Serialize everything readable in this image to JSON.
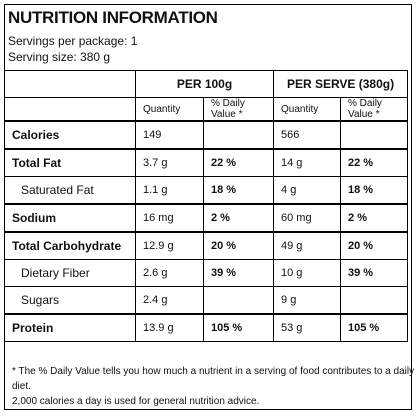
{
  "header": {
    "title": "NUTRITION INFORMATION",
    "servings_per_package": "Servings per package: 1",
    "serving_size": "Serving size: 380 g"
  },
  "table": {
    "column_groups": [
      "PER 100g",
      "PER SERVE (380g)"
    ],
    "subheaders": [
      "Quantity",
      "% Daily Value *",
      "Quantity",
      "% Daily Value *"
    ],
    "rows": [
      {
        "name": "Calories",
        "cells": [
          "149",
          null,
          "566",
          null
        ]
      },
      {
        "name": "Total Fat",
        "cells": [
          "3.7 g",
          "22 %",
          "14 g",
          "22 %"
        ],
        "sub": [
          {
            "name": "Saturated Fat",
            "cells": [
              "1.1 g",
              "18 %",
              "4 g",
              "18 %"
            ]
          }
        ]
      },
      {
        "name": "Sodium",
        "cells": [
          "16 mg",
          "2 %",
          "60 mg",
          "2 %"
        ]
      },
      {
        "name": "Total Carbohydrate",
        "cells": [
          "12.9 g",
          "20 %",
          "49 g",
          "20 %"
        ],
        "sub": [
          {
            "name": "Dietary Fiber",
            "cells": [
              "2.6 g",
              "39 %",
              "10 g",
              "39 %"
            ]
          },
          {
            "name": "Sugars",
            "cells": [
              "2.4 g",
              null,
              "9 g",
              null
            ]
          }
        ]
      },
      {
        "name": "Protein",
        "cells": [
          "13.9 g",
          "105 %",
          "53 g",
          "105 %"
        ]
      }
    ]
  },
  "footnote": [
    "* The % Daily Value tells you how much a nutrient in a serving of food contributes to a daily diet.",
    "2,000 calories a day is used for general nutrition advice."
  ]
}
